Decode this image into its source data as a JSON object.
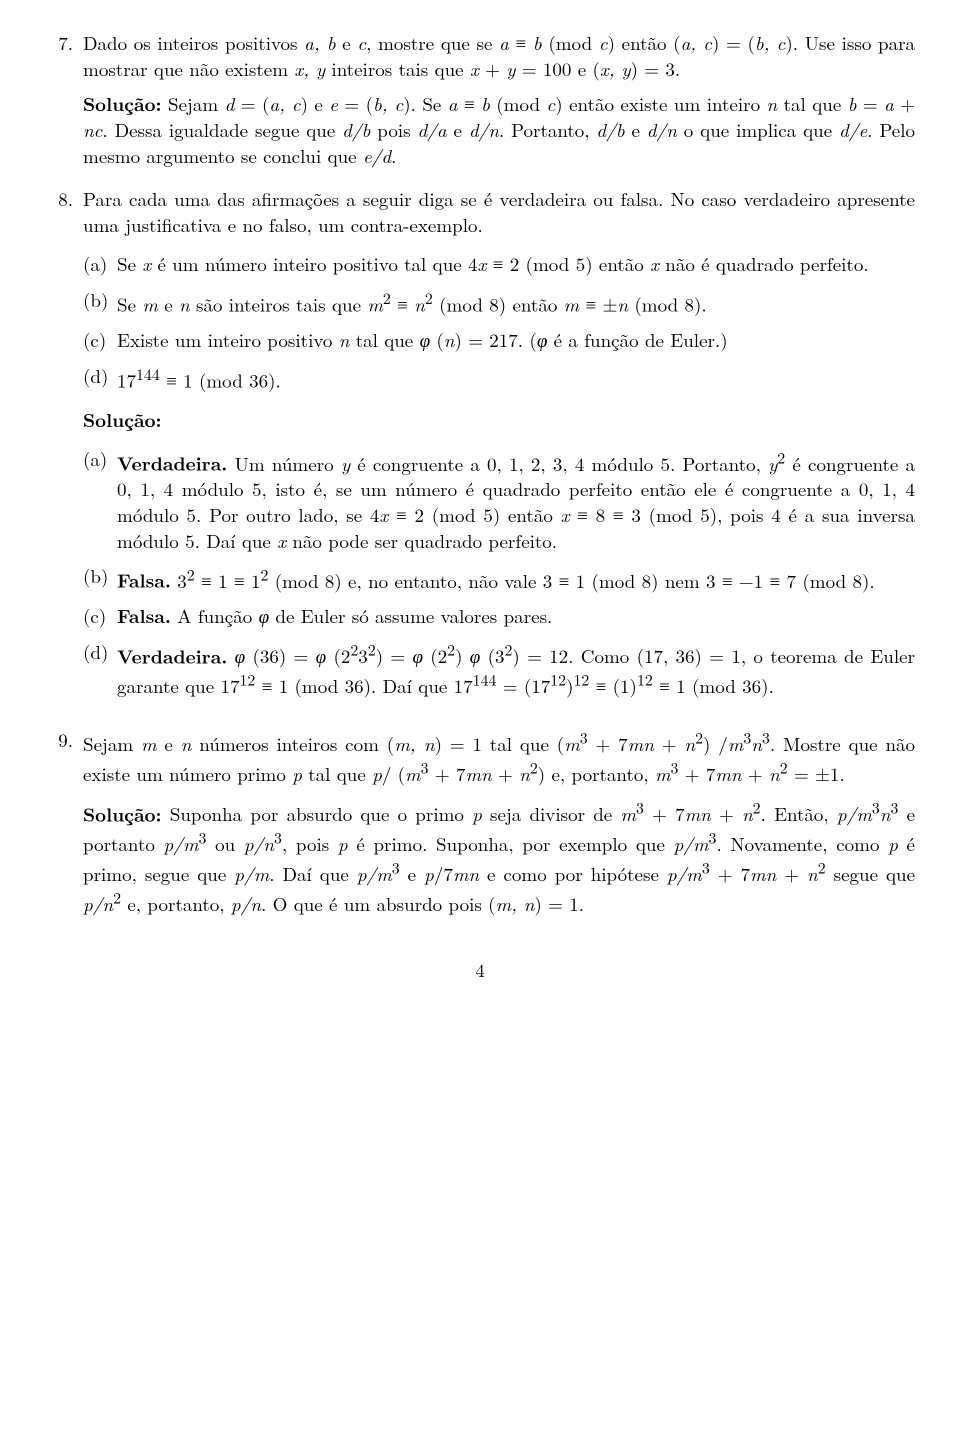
{
  "items": [
    {
      "num": "7.",
      "problem": "Dado os inteiros positivos <span class='i'>a, b</span> e <span class='i'>c</span>, mostre que se <span class='i'>a</span> ≡ <span class='i'>b</span> (mod <span class='i'>c</span>) então (<span class='i'>a, c</span>) = (<span class='i'>b, c</span>). Use isso para mostrar que não existem <span class='i'>x, y</span> inteiros tais que <span class='i'>x</span> + <span class='i'>y</span> = 100 e (<span class='i'>x, y</span>) = 3.",
      "solution_label": "Solução:",
      "solution": "Sejam <span class='i'>d</span> = (<span class='i'>a, c</span>) e <span class='i'>e</span> = (<span class='i'>b, c</span>). Se <span class='i'>a</span> ≡ <span class='i'>b</span> (mod <span class='i'>c</span>) então existe um inteiro <span class='i'>n</span> tal que <span class='i'>b</span> = <span class='i'>a</span> + <span class='i'>nc</span>. Dessa igualdade segue que <span class='i'>d/b</span> pois <span class='i'>d/a</span> e <span class='i'>d/n</span>. Portanto, <span class='i'>d/b</span> e <span class='i'>d/n</span> o que implica que <span class='i'>d/e</span>. Pelo mesmo argumento se conclui que <span class='i'>e/d</span>."
    },
    {
      "num": "8.",
      "problem": "Para cada uma das afirmações a seguir diga se é verdadeira ou falsa. No caso verdadeiro apresente uma justificativa e no falso, um contra-exemplo.",
      "parts": [
        {
          "label": "(a)",
          "text": "Se <span class='i'>x</span> é um número inteiro positivo tal que 4<span class='i'>x</span> ≡ 2 (mod 5) então <span class='i'>x</span> não é quadrado perfeito."
        },
        {
          "label": "(b)",
          "text": "Se <span class='i'>m</span> e <span class='i'>n</span> são inteiros tais que <span class='i'>m</span><sup>2</sup> ≡ <span class='i'>n</span><sup>2</sup> (mod 8) então <span class='i'>m</span> ≡ ±<span class='i'>n</span> (mod 8)."
        },
        {
          "label": "(c)",
          "text": "Existe um inteiro positivo <span class='i'>n</span> tal que <span class='i'>φ</span> (<span class='i'>n</span>) = 217. (<span class='i'>φ</span> é a função de Euler.)"
        },
        {
          "label": "(d)",
          "text": "17<sup>144</sup> ≡ 1 (mod 36)."
        }
      ],
      "solution_label": "Solução:",
      "answers": [
        {
          "label": "(a)",
          "tag": "Verdadeira.",
          "text": "Um número <span class='i'>y</span> é congruente a 0, 1, 2, 3, 4 módulo 5. Portanto, <span class='i'>y</span><sup>2</sup> é congruente a 0, 1, 4 módulo 5, isto é, se um número é quadrado perfeito então ele é congruente a 0, 1, 4 módulo 5. Por outro lado, se 4<span class='i'>x</span> ≡ 2 (mod 5) então <span class='i'>x</span> ≡ 8 ≡ 3 (mod 5), pois 4 é a sua inversa módulo 5. Daí que <span class='i'>x</span> não pode ser quadrado perfeito."
        },
        {
          "label": "(b)",
          "tag": "Falsa.",
          "text": "3<sup>2</sup> ≡ 1 ≡ 1<sup>2</sup> (mod 8) e, no entanto, não vale 3 ≡ 1 (mod 8) nem 3 ≡ −1 ≡ 7 (mod 8)."
        },
        {
          "label": "(c)",
          "tag": "Falsa.",
          "text": "A função <span class='i'>φ</span> de Euler só assume valores pares."
        },
        {
          "label": "(d)",
          "tag": "Verdadeira.",
          "text": "<span class='i'>φ</span> (36) = <span class='i'>φ</span> (2<sup>2</sup>3<sup>2</sup>) = <span class='i'>φ</span> (2<sup>2</sup>) <span class='i'>φ</span> (3<sup>2</sup>) = 12. Como (17, 36) = 1, o teorema de Euler garante que 17<sup>12</sup> ≡ 1 (mod 36). Daí que 17<sup>144</sup> = (17<sup>12</sup>)<sup>12</sup> ≡ (1)<sup>12</sup> ≡ 1 (mod 36)."
        }
      ]
    },
    {
      "num": "9.",
      "problem": "Sejam <span class='i'>m</span> e <span class='i'>n</span> números inteiros com (<span class='i'>m, n</span>) = 1 tal que (<span class='i'>m</span><sup>3</sup> + 7<span class='i'>mn</span> + <span class='i'>n</span><sup>2</sup>) /<span class='i'>m</span><sup>3</sup><span class='i'>n</span><sup>3</sup>. Mostre que não existe um número primo <span class='i'>p</span> tal que <span class='i'>p</span>/ (<span class='i'>m</span><sup>3</sup> + 7<span class='i'>mn</span> + <span class='i'>n</span><sup>2</sup>) e, portanto, <span class='i'>m</span><sup>3</sup> + 7<span class='i'>mn</span> + <span class='i'>n</span><sup>2</sup> = ±1.",
      "solution_label": "Solução:",
      "solution": "Suponha por absurdo que o primo <span class='i'>p</span> seja divisor de <span class='i'>m</span><sup>3</sup> + 7<span class='i'>mn</span> + <span class='i'>n</span><sup>2</sup>. Então, <span class='i'>p/m</span><sup>3</sup><span class='i'>n</span><sup>3</sup> e portanto <span class='i'>p/m</span><sup>3</sup> ou <span class='i'>p/n</span><sup>3</sup>, pois <span class='i'>p</span> é primo. Suponha, por exemplo que <span class='i'>p/m</span><sup>3</sup>. Novamente, como <span class='i'>p</span> é primo, segue que <span class='i'>p/m</span>. Daí que <span class='i'>p/m</span><sup>3</sup> e <span class='i'>p</span>/7<span class='i'>mn</span> e como por hipótese <span class='i'>p/m</span><sup>3</sup> + 7<span class='i'>mn</span> + <span class='i'>n</span><sup>2</sup> segue que <span class='i'>p/n</span><sup>2</sup> e, portanto, <span class='i'>p/n</span>. O que é um absurdo pois (<span class='i'>m, n</span>) = 1."
    }
  ],
  "page_number": "4"
}
